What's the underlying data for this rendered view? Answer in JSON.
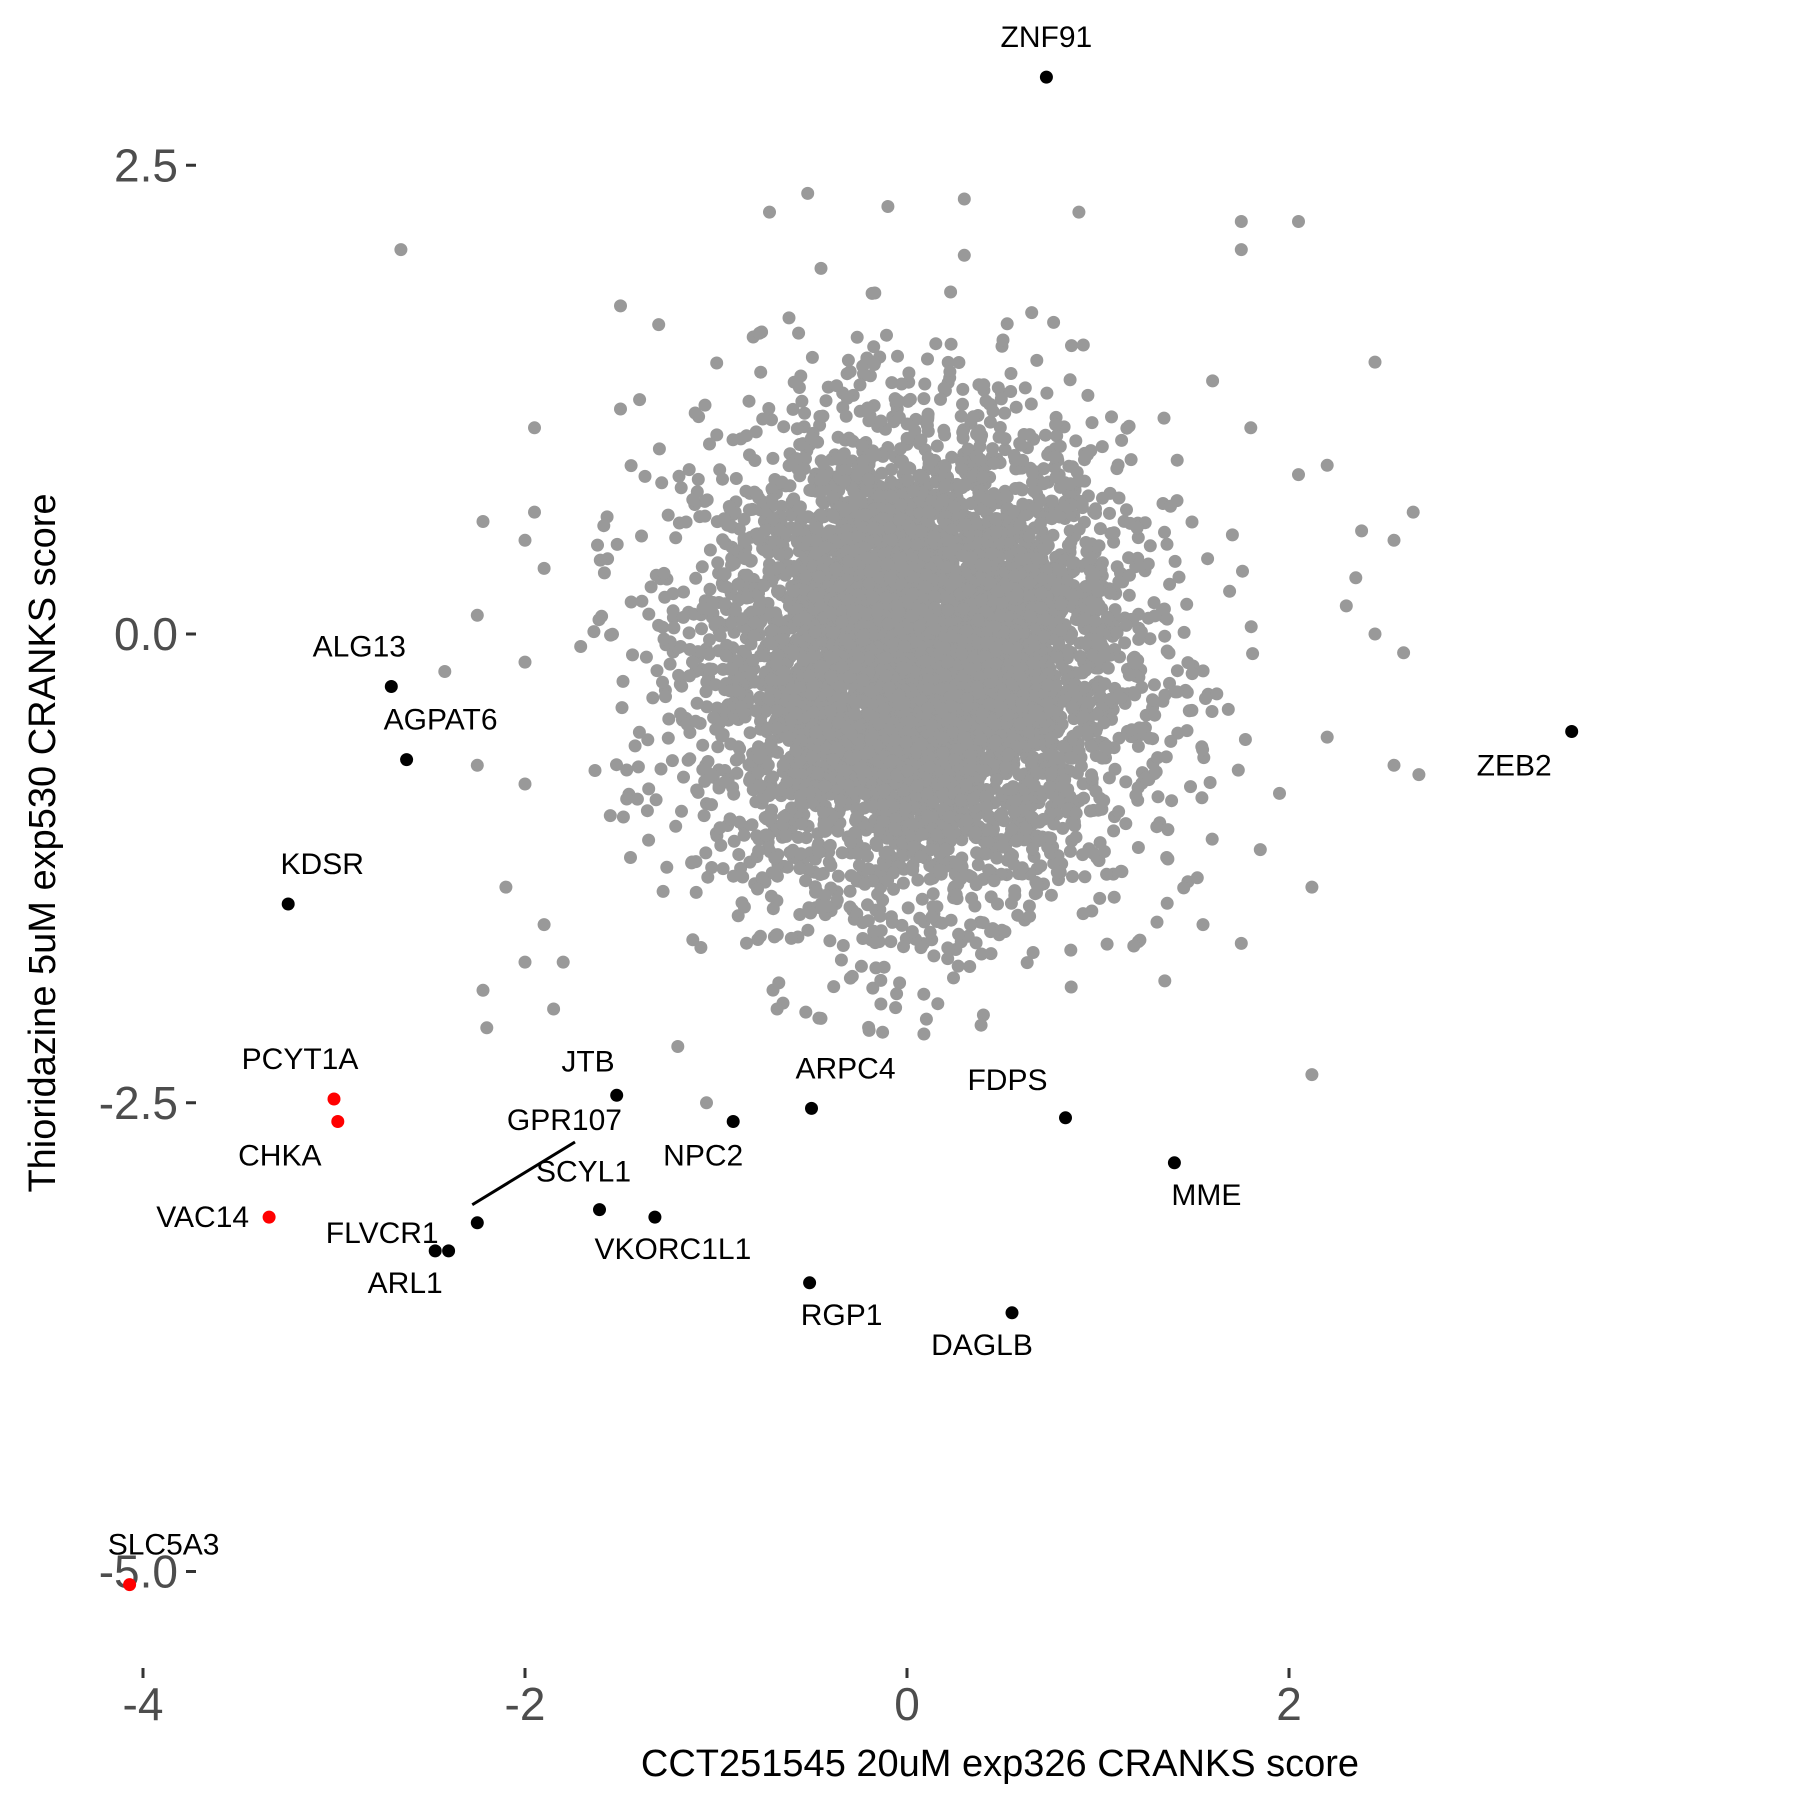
{
  "chart_data": {
    "type": "scatter",
    "title": "",
    "xlabel": "CCT251545 20uM exp326 CRANKS score",
    "ylabel": "Thioridazine 5uM exp530 CRANKS score",
    "xlim": [
      -4.35,
      3.8
    ],
    "ylim": [
      -5.45,
      3.35
    ],
    "x_ticks": [
      -4,
      -2,
      0,
      2
    ],
    "x_tick_labels": [
      "-4",
      "-2",
      "0",
      "2"
    ],
    "y_ticks": [
      2.5,
      0.0,
      -2.5,
      -5.0
    ],
    "y_tick_labels": [
      "2.5",
      "0.0",
      "-2.5",
      "-5.0"
    ],
    "grid": false,
    "legend": "none",
    "colors": {
      "background": "#999999",
      "highlight": "#000000",
      "key": "#ff0000",
      "tick_text": "#4d4d4d",
      "tick_mark": "#333333"
    },
    "background_cloud": {
      "description_count": 6000,
      "center": [
        0.05,
        -0.15
      ],
      "sd": [
        0.55,
        0.62
      ],
      "outliers": [
        [
          -2.65,
          2.05
        ],
        [
          -1.5,
          1.75
        ],
        [
          -0.72,
          2.25
        ],
        [
          -0.52,
          2.35
        ],
        [
          -0.1,
          2.28
        ],
        [
          0.3,
          2.32
        ],
        [
          0.9,
          2.25
        ],
        [
          1.75,
          2.2
        ],
        [
          2.05,
          2.2
        ],
        [
          1.75,
          2.05
        ],
        [
          2.45,
          1.45
        ],
        [
          -1.5,
          1.2
        ],
        [
          -1.95,
          1.1
        ],
        [
          -1.4,
          1.25
        ],
        [
          -2.22,
          0.6
        ],
        [
          -1.95,
          0.65
        ],
        [
          -1.9,
          0.35
        ],
        [
          -2.0,
          0.5
        ],
        [
          -2.25,
          0.1
        ],
        [
          -2.0,
          -0.15
        ],
        [
          -2.42,
          -0.2
        ],
        [
          -2.25,
          -0.7
        ],
        [
          -2.0,
          -0.8
        ],
        [
          -2.1,
          -1.35
        ],
        [
          -2.0,
          -1.75
        ],
        [
          -1.8,
          -1.75
        ],
        [
          -2.22,
          -1.9
        ],
        [
          -2.2,
          -2.1
        ],
        [
          -1.85,
          -2.0
        ],
        [
          -1.2,
          -2.2
        ],
        [
          -1.05,
          -2.5
        ],
        [
          -0.68,
          -2.0
        ],
        [
          -0.45,
          -2.05
        ],
        [
          -1.9,
          -1.55
        ],
        [
          1.35,
          -1.85
        ],
        [
          1.52,
          -1.3
        ],
        [
          1.55,
          -1.55
        ],
        [
          1.75,
          -1.65
        ],
        [
          2.12,
          -1.35
        ],
        [
          2.12,
          -2.35
        ],
        [
          2.55,
          -0.7
        ],
        [
          2.68,
          -0.75
        ],
        [
          2.65,
          0.65
        ],
        [
          2.35,
          0.3
        ],
        [
          2.55,
          0.5
        ],
        [
          2.45,
          0.0
        ],
        [
          2.6,
          -0.1
        ],
        [
          2.2,
          0.9
        ],
        [
          2.05,
          0.85
        ],
        [
          1.8,
          1.1
        ],
        [
          2.38,
          0.55
        ],
        [
          2.3,
          0.15
        ],
        [
          2.2,
          -0.55
        ],
        [
          1.95,
          -0.85
        ],
        [
          1.85,
          -1.15
        ],
        [
          1.6,
          1.35
        ],
        [
          0.3,
          2.02
        ],
        [
          -0.45,
          1.95
        ],
        [
          -1.3,
          1.65
        ]
      ]
    },
    "highlighted_points": [
      {
        "label": "ZNF91",
        "x": 0.73,
        "y": 2.97,
        "color": "#000000",
        "label_pos": "above"
      },
      {
        "label": "ALG13",
        "x": -2.7,
        "y": -0.28,
        "color": "#000000",
        "label_pos": "above"
      },
      {
        "label": "AGPAT6",
        "x": -2.62,
        "y": -0.67,
        "color": "#000000",
        "label_pos": "above"
      },
      {
        "label": "ZEB2",
        "x": 3.48,
        "y": -0.52,
        "color": "#000000",
        "label_pos": "below"
      },
      {
        "label": "KDSR",
        "x": -3.24,
        "y": -1.44,
        "color": "#000000",
        "label_pos": "above"
      },
      {
        "label": "PCYT1A",
        "x": -3.0,
        "y": -2.48,
        "color": "#ff0000",
        "label_pos": "above"
      },
      {
        "label": "CHKA",
        "x": -2.98,
        "y": -2.6,
        "color": "#ff0000",
        "label_pos": "below-left"
      },
      {
        "label": "VAC14",
        "x": -3.34,
        "y": -3.11,
        "color": "#ff0000",
        "label_pos": "left"
      },
      {
        "label": "GPR107",
        "x": -2.25,
        "y": -3.14,
        "color": "#000000",
        "label_pos": "leader"
      },
      {
        "label": "FLVCR1",
        "x": -2.4,
        "y": -3.29,
        "color": "#000000",
        "label_pos": "above-left"
      },
      {
        "label": "ARL1",
        "x": -2.47,
        "y": -3.29,
        "color": "#000000",
        "label_pos": "below"
      },
      {
        "label": "JTB",
        "x": -1.52,
        "y": -2.46,
        "color": "#000000",
        "label_pos": "above-left"
      },
      {
        "label": "ARPC4",
        "x": -0.5,
        "y": -2.53,
        "color": "#000000",
        "label_pos": "above"
      },
      {
        "label": "NPC2",
        "x": -0.91,
        "y": -2.6,
        "color": "#000000",
        "label_pos": "below"
      },
      {
        "label": "SCYL1",
        "x": -1.61,
        "y": -3.07,
        "color": "#000000",
        "label_pos": "above-left"
      },
      {
        "label": "VKORC1L1",
        "x": -1.32,
        "y": -3.11,
        "color": "#000000",
        "label_pos": "below"
      },
      {
        "label": "FDPS",
        "x": 0.83,
        "y": -2.58,
        "color": "#000000",
        "label_pos": "above-left"
      },
      {
        "label": "MME",
        "x": 1.4,
        "y": -2.82,
        "color": "#000000",
        "label_pos": "below"
      },
      {
        "label": "RGP1",
        "x": -0.51,
        "y": -3.46,
        "color": "#000000",
        "label_pos": "below"
      },
      {
        "label": "DAGLB",
        "x": 0.55,
        "y": -3.62,
        "color": "#000000",
        "label_pos": "below"
      },
      {
        "label": "SLC5A3",
        "x": -4.07,
        "y": -5.07,
        "color": "#ff0000",
        "label_pos": "above"
      }
    ]
  }
}
